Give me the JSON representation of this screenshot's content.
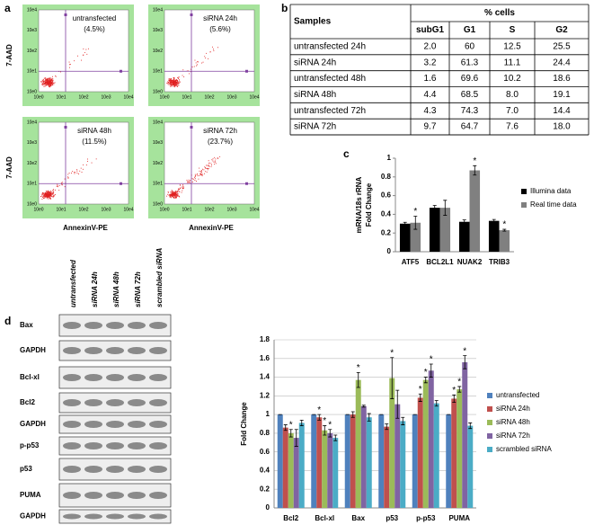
{
  "panel_labels": [
    "a",
    "b",
    "c",
    "d"
  ],
  "flow": {
    "y_label": "7-AAD",
    "x_label": "AnnexinV-PE",
    "ticks": [
      "10e0",
      "10e1",
      "10e2",
      "10e3",
      "10e4"
    ],
    "plots": [
      {
        "title": "untransfected",
        "percent": "(4.5%)"
      },
      {
        "title": "siRNA 24h",
        "percent": "(5.6%)"
      },
      {
        "title": "siRNA 48h",
        "percent": "(11.5%)"
      },
      {
        "title": "siRNA 72h",
        "percent": "(23.7%)"
      }
    ]
  },
  "table": {
    "header": [
      "Samples",
      "% cells"
    ],
    "columns": [
      "subG1",
      "G1",
      "S",
      "G2"
    ],
    "rows": [
      [
        "untransfected 24h",
        "2.0",
        "60",
        "12.5",
        "25.5"
      ],
      [
        "siRNA 24h",
        "3.2",
        "61.3",
        "11.1",
        "24.4"
      ],
      [
        "untransfected 48h",
        "1.6",
        "69.6",
        "10.2",
        "18.6"
      ],
      [
        "siRNA 48h",
        "4.4",
        "68.5",
        "8.0",
        "19.1"
      ],
      [
        "untransfected 72h",
        "4.3",
        "74.3",
        "7.0",
        "14.4"
      ],
      [
        "siRNA 72h",
        "9.7",
        "64.7",
        "7.6",
        "18.0"
      ]
    ]
  },
  "blot": {
    "lanes": [
      "untransfected",
      "siRNA 24h",
      "siRNA 48h",
      "siRNA 72h",
      "scrambled siRNA"
    ],
    "rows": [
      "Bax",
      "GAPDH",
      "Bcl-xl",
      "Bcl2",
      "GAPDH",
      "p-p53",
      "p53",
      "PUMA",
      "GAPDH"
    ]
  },
  "chart_data": [
    {
      "type": "bar",
      "ylabel": [
        "mRNA/18s rRNA",
        "Fold  Change"
      ],
      "categories": [
        "ATF5",
        "BCL2L1",
        "NUAK2",
        "TRIB3"
      ],
      "ylim": [
        0,
        1
      ],
      "yticks": [
        0,
        0.2,
        0.4,
        0.6,
        0.8,
        1
      ],
      "grid": false,
      "series": [
        {
          "name": "Illumina data",
          "color": "#000000",
          "values": [
            0.3,
            0.47,
            0.32,
            0.33
          ],
          "errors": [
            0.015,
            0.025,
            0.02,
            0.015
          ],
          "annotations": [
            null,
            null,
            null,
            null
          ]
        },
        {
          "name": "Real time data",
          "color": "#808080",
          "values": [
            0.31,
            0.47,
            0.87,
            0.23
          ],
          "errors": [
            0.07,
            0.08,
            0.05,
            0.01
          ],
          "annotations": [
            "*",
            null,
            "*",
            "*"
          ]
        }
      ]
    },
    {
      "type": "bar",
      "ylabel": [
        "Fold  Change"
      ],
      "categories": [
        "Bcl2",
        "Bcl-xl",
        "Bax",
        "p53",
        "p-p53",
        "PUMA"
      ],
      "ylim": [
        0,
        1.8
      ],
      "yticks": [
        0,
        0.2,
        0.4,
        0.6,
        0.8,
        1,
        1.2,
        1.4,
        1.6,
        1.8
      ],
      "grid": true,
      "series": [
        {
          "name": "untransfected",
          "color": "#4f81bd",
          "values": [
            1,
            1,
            1,
            1,
            1,
            1
          ],
          "errors": [
            0,
            0,
            0,
            0,
            0,
            0
          ],
          "annotations": [
            null,
            null,
            null,
            null,
            null,
            null
          ]
        },
        {
          "name": "siRNA 24h",
          "color": "#c0504d",
          "values": [
            0.86,
            0.97,
            1.0,
            0.87,
            1.18,
            1.17
          ],
          "errors": [
            0.03,
            0.03,
            0.03,
            0.03,
            0.04,
            0.04
          ],
          "annotations": [
            null,
            "*",
            null,
            null,
            "*",
            "*"
          ]
        },
        {
          "name": "siRNA 48h",
          "color": "#9bbb59",
          "values": [
            0.8,
            0.83,
            1.37,
            1.39,
            1.37,
            1.27
          ],
          "errors": [
            0.04,
            0.05,
            0.08,
            0.22,
            0.03,
            0.03
          ],
          "annotations": [
            "*",
            "*",
            "*",
            "*",
            "*",
            "*"
          ]
        },
        {
          "name": "siRNA 72h",
          "color": "#8064a2",
          "values": [
            0.75,
            0.8,
            1.09,
            1.11,
            1.47,
            1.56
          ],
          "errors": [
            0.09,
            0.04,
            0.01,
            0.15,
            0.07,
            0.07
          ],
          "annotations": [
            null,
            "*",
            null,
            null,
            "*",
            "*"
          ]
        },
        {
          "name": "scrambled siRNA",
          "color": "#4bacc6",
          "values": [
            0.91,
            0.75,
            0.97,
            0.93,
            1.12,
            0.88
          ],
          "errors": [
            0.03,
            0.03,
            0.04,
            0.04,
            0.03,
            0.03
          ],
          "annotations": [
            null,
            null,
            null,
            null,
            null,
            null
          ]
        }
      ]
    }
  ]
}
